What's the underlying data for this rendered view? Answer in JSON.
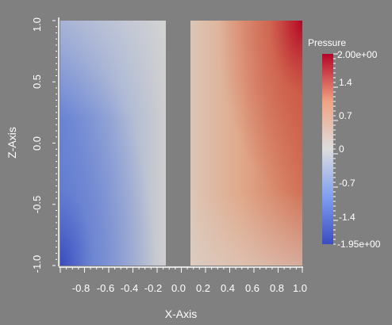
{
  "x_axis": {
    "title": "X-Axis",
    "ticks": [
      "-0.8",
      "-0.6",
      "-0.4",
      "-0.2",
      "0.0",
      "0.2",
      "0.4",
      "0.6",
      "0.8",
      "1.0"
    ]
  },
  "z_axis": {
    "title": "Z-Axis",
    "ticks": [
      "-1.0",
      "-0.5",
      "0.0",
      "0.5",
      "1.0"
    ]
  },
  "legend": {
    "title": "Pressure",
    "labels": [
      "2.00e+00",
      "1.4",
      "0.7",
      "0",
      "-0.7",
      "-1.4",
      "-1.95e+00"
    ],
    "max": 2.0,
    "min": -1.95
  },
  "colors": {
    "background": "#808080",
    "low": "#3b4cc0",
    "mid": "#dddddd",
    "high": "#b40426"
  }
}
